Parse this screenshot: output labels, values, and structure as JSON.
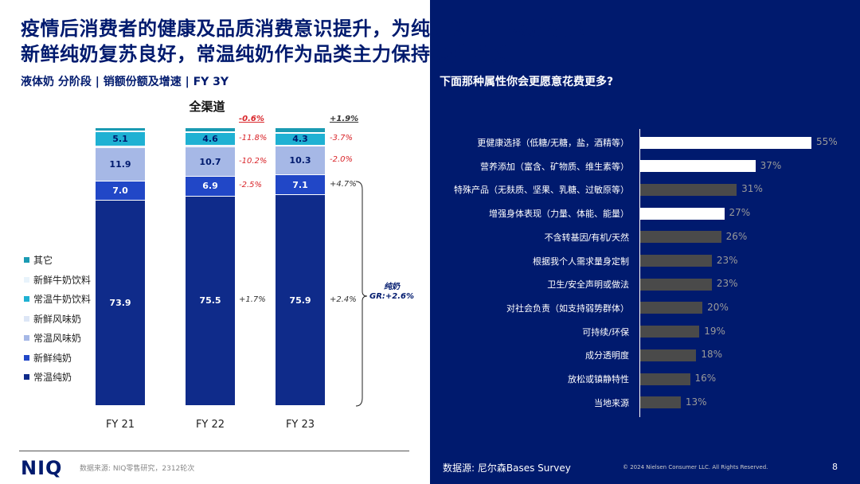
{
  "title_line1": "疫情后消费者的健康及品质消费意识提升，为纯奶发展带来新机遇",
  "title_line2": "新鲜纯奶复苏良好，常温纯奶作为品类主力保持稳健增长",
  "left_subtitle": "液体奶 分阶段 | 销额份额及增速 | FY 3Y",
  "channel_title": "全渠道",
  "right_question": "下面那种属性你会更愿意花费更多?",
  "pure_milk_gr": {
    "line1": "纯奶",
    "line2": "GR:+2.6%"
  },
  "legend": [
    {
      "label": "其它",
      "color": "#1b9bb3"
    },
    {
      "label": "新鲜牛奶饮料",
      "color": "#e8f3fb"
    },
    {
      "label": "常温牛奶饮料",
      "color": "#1fb1d3"
    },
    {
      "label": "新鲜风味奶",
      "color": "#dde6f6"
    },
    {
      "label": "常温风味奶",
      "color": "#a6b8e6"
    },
    {
      "label": "新鲜纯奶",
      "color": "#2147c7"
    },
    {
      "label": "常温纯奶",
      "color": "#0f2b8a"
    }
  ],
  "footer": {
    "logo": "NIQ",
    "source_left": "数据来源: NIQ零售研究，2312轮次",
    "source_right": "数据源:    尼尔森Bases Survey",
    "copyright": "© 2024 Nielsen Consumer LLC. All Rights Reserved.",
    "page": "8"
  },
  "chart_data": [
    {
      "type": "bar",
      "stacked": true,
      "title": "全渠道",
      "categories": [
        "FY 21",
        "FY 22",
        "FY 23"
      ],
      "series": [
        {
          "name": "常温纯奶",
          "values": [
            73.9,
            75.5,
            75.9
          ],
          "labels": [
            "73.9",
            "75.5",
            "75.9"
          ],
          "growth": [
            "",
            "+1.7%",
            "+2.4%"
          ]
        },
        {
          "name": "新鲜纯奶",
          "values": [
            7.0,
            6.9,
            7.1
          ],
          "labels": [
            "7.0",
            "6.9",
            "7.1"
          ],
          "growth": [
            "",
            "-2.5%",
            "+4.7%"
          ]
        },
        {
          "name": "常温风味奶",
          "values": [
            11.9,
            10.7,
            10.3
          ],
          "labels": [
            "11.9",
            "10.7",
            "10.3"
          ],
          "growth": [
            "",
            "-10.2%",
            "-2.0%"
          ]
        },
        {
          "name": "新鲜风味奶",
          "values": [
            0.6,
            0.6,
            0.5
          ],
          "labels": [
            "",
            "",
            ""
          ],
          "growth": [
            "",
            "",
            ""
          ]
        },
        {
          "name": "常温牛奶饮料",
          "values": [
            5.1,
            4.6,
            4.3
          ],
          "labels": [
            "5.1",
            "4.6",
            "4.3"
          ],
          "growth": [
            "",
            "-11.8%",
            "-3.7%"
          ]
        },
        {
          "name": "新鲜牛奶饮料",
          "values": [
            0.3,
            0.3,
            0.3
          ],
          "labels": [
            "",
            "",
            ""
          ],
          "growth": [
            "",
            "",
            ""
          ]
        },
        {
          "name": "其它",
          "values": [
            1.2,
            1.4,
            1.6
          ],
          "labels": [
            "",
            "",
            ""
          ],
          "growth": [
            "",
            "",
            ""
          ]
        }
      ],
      "total_growth": [
        "",
        "-0.6%",
        "+1.9%"
      ],
      "ylim": [
        0,
        100
      ]
    },
    {
      "type": "bar",
      "orientation": "horizontal",
      "title": "下面那种属性你会更愿意花费更多?",
      "categories": [
        "更健康选择（低糖/无糖，盐，酒精等）",
        "营养添加（富含、矿物质、维生素等）",
        "特殊产品（无麸质、坚果、乳糖、过敏原等）",
        "增强身体表现（力量、体能、能量）",
        "不含转基因/有机/天然",
        "根据我个人需求量身定制",
        "卫生/安全声明或做法",
        "对社会负责（如支持弱势群体）",
        "可持续/环保",
        "成分透明度",
        "放松或镇静特性",
        "当地来源"
      ],
      "values": [
        55,
        37,
        31,
        27,
        26,
        23,
        23,
        20,
        19,
        18,
        16,
        13
      ],
      "value_labels": [
        "55%",
        "37%",
        "31%",
        "27%",
        "26%",
        "23%",
        "23%",
        "20%",
        "19%",
        "18%",
        "16%",
        "13%"
      ],
      "highlighted": [
        true,
        true,
        false,
        true,
        false,
        false,
        false,
        false,
        false,
        false,
        false,
        false
      ],
      "colors": {
        "highlight": "#ffffff",
        "normal": "#4a4a4a"
      },
      "xlim": [
        0,
        60
      ]
    }
  ]
}
